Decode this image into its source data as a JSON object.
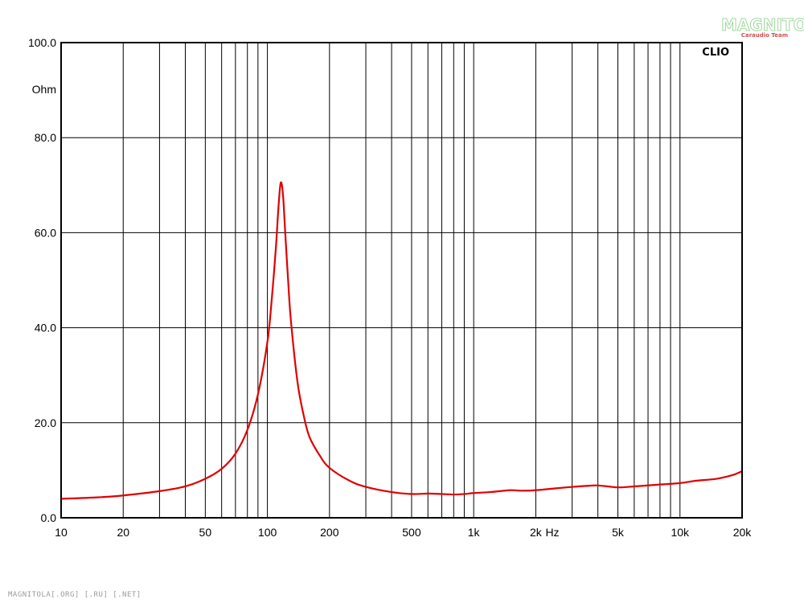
{
  "chart_data": {
    "type": "line",
    "title": "",
    "xlabel": "Hz",
    "ylabel": "Ohm",
    "x_scale": "log",
    "xlim": [
      10,
      20000
    ],
    "ylim": [
      0,
      100
    ],
    "y_ticks": [
      0,
      20,
      40,
      60,
      80,
      100
    ],
    "y_tick_labels": [
      "0.0",
      "20.0",
      "40.0",
      "60.0",
      "80.0",
      "100.0"
    ],
    "x_ticks": [
      10,
      20,
      50,
      100,
      200,
      500,
      1000,
      2000,
      5000,
      10000,
      20000
    ],
    "x_tick_labels": [
      "10",
      "20",
      "50",
      "100",
      "200",
      "500",
      "1k",
      "2k",
      "5k",
      "10k",
      "20k"
    ],
    "grid": true,
    "series": [
      {
        "color": "#e00000",
        "x": [
          10,
          15,
          20,
          30,
          40,
          50,
          60,
          70,
          80,
          90,
          100,
          105,
          110,
          113,
          116,
          119,
          122,
          126,
          130,
          140,
          150,
          160,
          180,
          200,
          250,
          300,
          400,
          500,
          600,
          700,
          800,
          900,
          1000,
          1200,
          1500,
          1700,
          2000,
          2500,
          3000,
          3500,
          4000,
          5000,
          6000,
          8000,
          10000,
          12000,
          15000,
          18000,
          20000
        ],
        "y": [
          4.0,
          4.3,
          4.7,
          5.6,
          6.6,
          8.2,
          10.3,
          13.5,
          18.5,
          26.0,
          37.0,
          46.0,
          57.0,
          65.0,
          70.5,
          68.0,
          60.0,
          50.0,
          41.5,
          28.5,
          21.5,
          17.0,
          13.0,
          10.5,
          7.8,
          6.5,
          5.4,
          5.0,
          5.1,
          5.0,
          4.9,
          5.0,
          5.2,
          5.4,
          5.8,
          5.7,
          5.8,
          6.2,
          6.5,
          6.7,
          6.8,
          6.4,
          6.6,
          7.0,
          7.3,
          7.8,
          8.2,
          9.0,
          9.8
        ]
      }
    ]
  },
  "brand": "CLIO",
  "logo": {
    "main": "MAGNITOLA",
    "sub": "Caraudio Team"
  },
  "footer": "MAGNITOLA[.ORG] [.RU] [.NET]"
}
